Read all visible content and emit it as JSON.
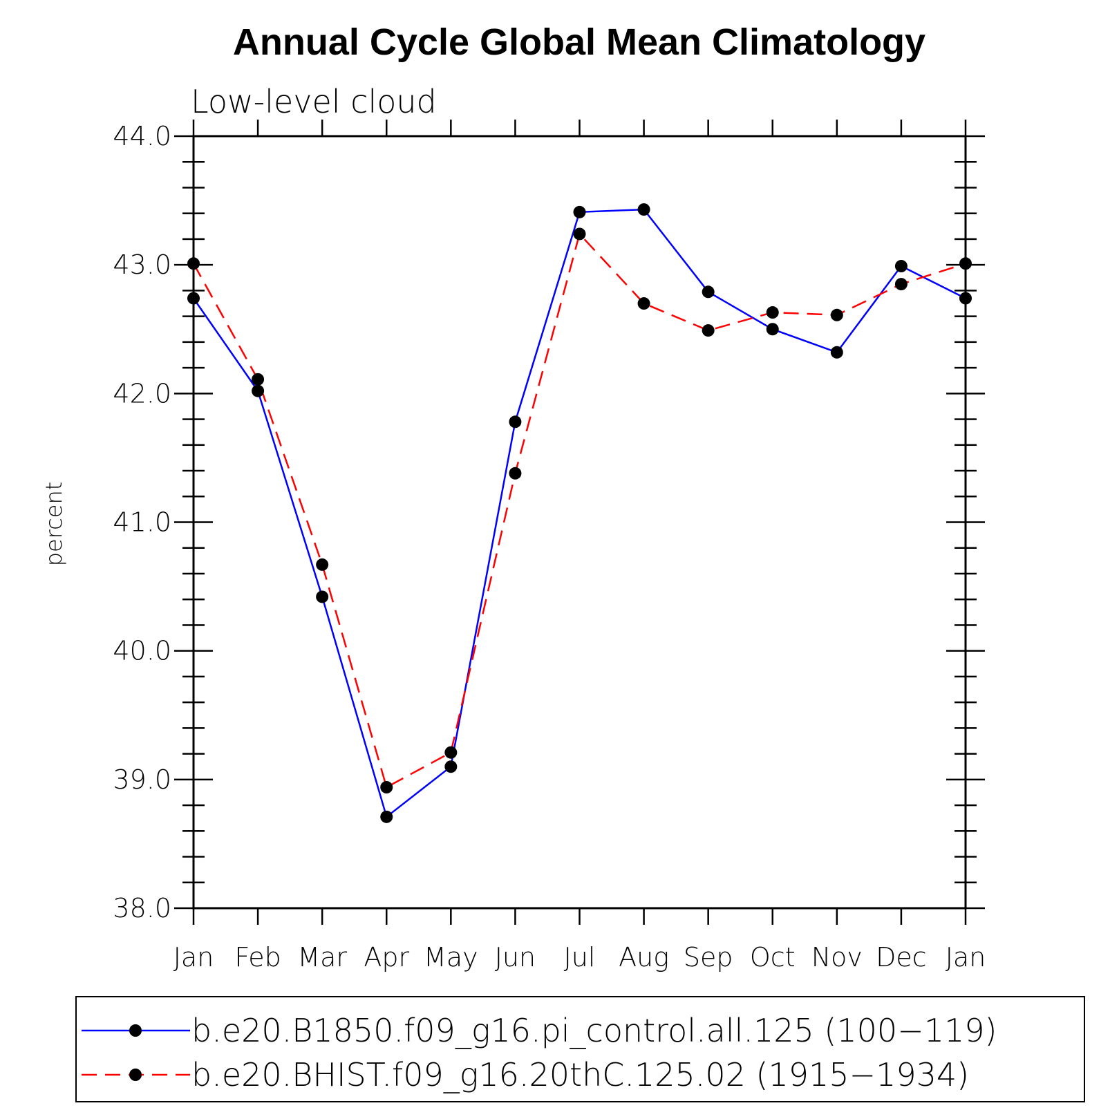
{
  "chart_data": {
    "type": "line",
    "title": "Annual Cycle Global Mean Climatology",
    "subtitle": "Low-level cloud",
    "xlabel": "",
    "ylabel": "percent",
    "categories": [
      "Jan",
      "Feb",
      "Mar",
      "Apr",
      "May",
      "Jun",
      "Jul",
      "Aug",
      "Sep",
      "Oct",
      "Nov",
      "Dec",
      "Jan"
    ],
    "ylim": [
      38.0,
      44.0
    ],
    "yticks": [
      38.0,
      39.0,
      40.0,
      41.0,
      42.0,
      43.0,
      44.0
    ],
    "ytick_labels": [
      "38.0",
      "39.0",
      "40.0",
      "41.0",
      "42.0",
      "43.0",
      "44.0"
    ],
    "grid": false,
    "legend_position": "bottom",
    "series": [
      {
        "name": "b.e20.B1850.f09_g16.pi_control.all.125 (100−119)",
        "color": "#0000ff",
        "dash": "solid",
        "marker": "filled-circle",
        "values": [
          42.74,
          42.02,
          40.42,
          38.71,
          39.1,
          41.78,
          43.41,
          43.43,
          42.79,
          42.5,
          42.32,
          42.99,
          42.74
        ]
      },
      {
        "name": "b.e20.BHIST.f09_g16.20thC.125.02 (1915−1934)",
        "color": "#ff0000",
        "dash": "dashed",
        "marker": "filled-circle",
        "values": [
          43.01,
          42.11,
          40.67,
          38.94,
          39.21,
          41.38,
          43.24,
          42.7,
          42.49,
          42.63,
          42.61,
          42.85,
          43.01
        ]
      }
    ]
  }
}
